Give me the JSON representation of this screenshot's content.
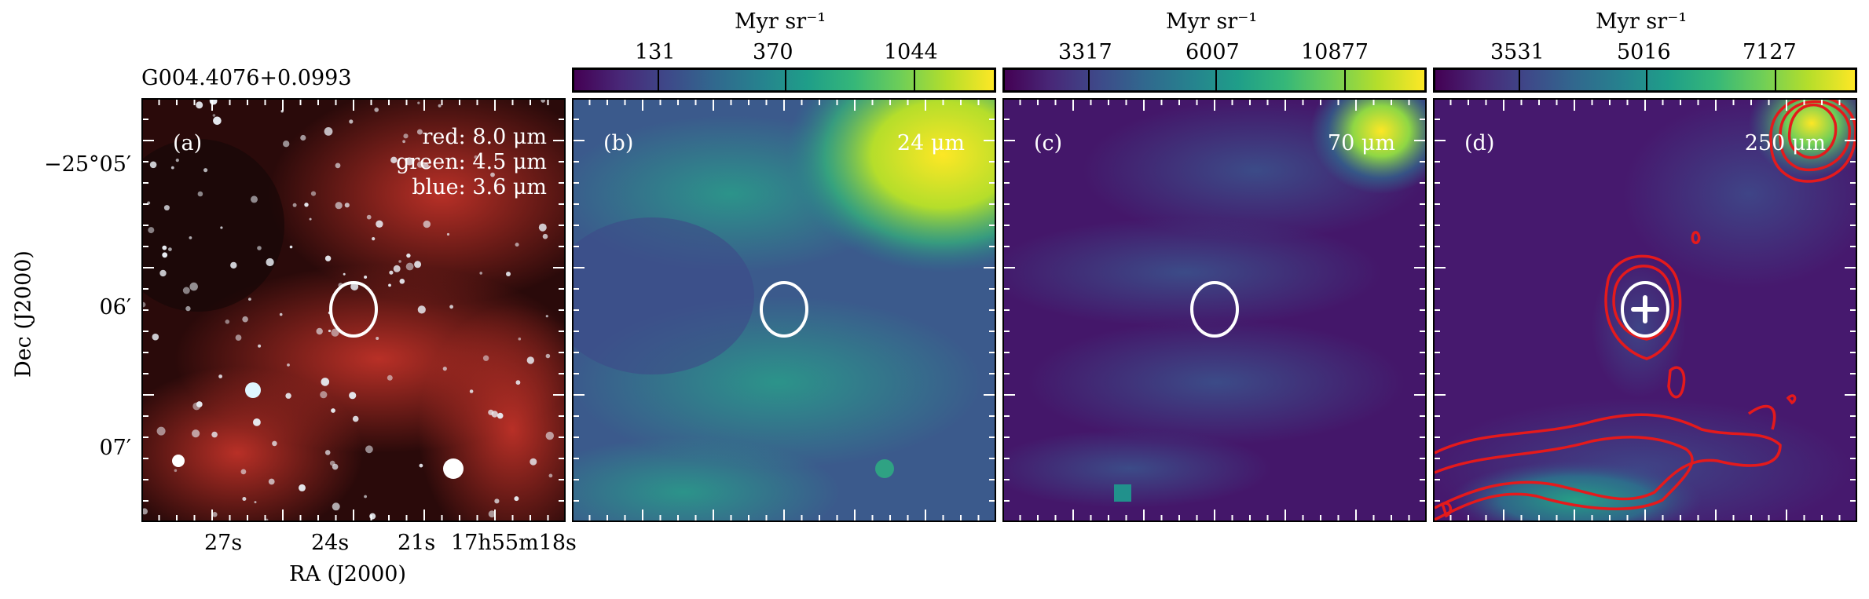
{
  "figure": {
    "source_name": "G004.4076+0.0993",
    "xlabel": "RA (J2000)",
    "ylabel": "Dec (J2000)",
    "ra_ticks": [
      "27s",
      "24s",
      "21s",
      "17h55m18s"
    ],
    "dec_ticks": [
      "−25°05′",
      "06′",
      "07′"
    ]
  },
  "panels": [
    {
      "id": "a",
      "label": "(a)",
      "legend": [
        "red: 8.0 μm",
        "green: 4.5 μm",
        "blue: 3.6 μm"
      ]
    },
    {
      "id": "b",
      "label": "(b)",
      "wavelength": "24 μm",
      "colorbar": {
        "unit": "Myr sr⁻¹",
        "ticks": [
          "131",
          "370",
          "1044"
        ],
        "colormap": "viridis"
      }
    },
    {
      "id": "c",
      "label": "(c)",
      "wavelength": "70 μm",
      "colorbar": {
        "unit": "Myr sr⁻¹",
        "ticks": [
          "3317",
          "6007",
          "10877"
        ],
        "colormap": "viridis"
      }
    },
    {
      "id": "d",
      "label": "(d)",
      "wavelength": "250 μm",
      "colorbar": {
        "unit": "Myr sr⁻¹",
        "ticks": [
          "3531",
          "5016",
          "7127"
        ],
        "colormap": "viridis"
      }
    }
  ],
  "colors": {
    "ellipse": "#ffffff",
    "contours": "#e41a1c",
    "marker": "#ffffff"
  }
}
